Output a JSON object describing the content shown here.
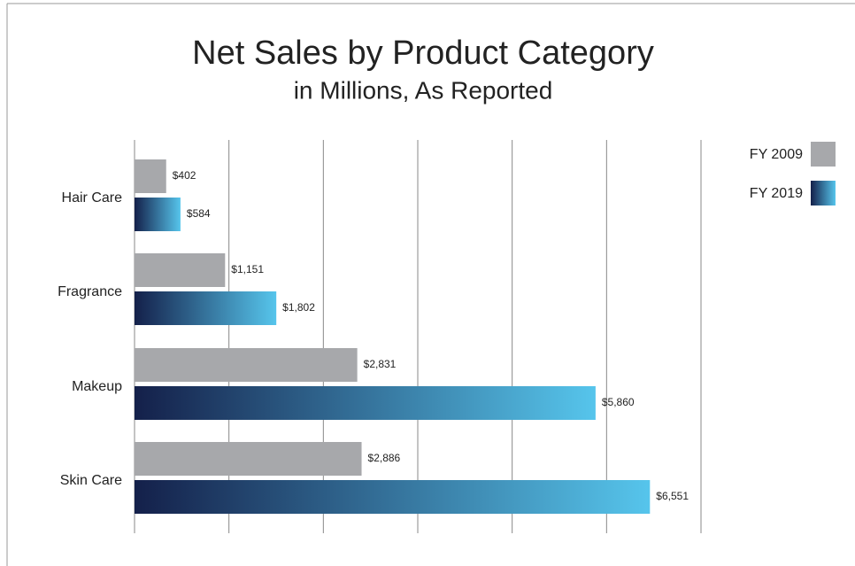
{
  "chart_data": {
    "type": "hbar",
    "title": "Net Sales by Product Category",
    "subtitle": "in Millions, As Reported",
    "categories": [
      "Hair Care",
      "Fragrance",
      "Makeup",
      "Skin Care"
    ],
    "series": [
      {
        "name": "FY 2009",
        "color": "#a7a8ab",
        "values": [
          402,
          1151,
          2831,
          2886
        ],
        "value_labels": [
          "$402",
          "$1,151",
          "$2,831",
          "$2,886"
        ]
      },
      {
        "name": "FY 2019",
        "color": "#56c5ec",
        "gradient_start": "#14204a",
        "values": [
          584,
          1802,
          5860,
          6551
        ],
        "value_labels": [
          "$584",
          "$1,802",
          "$5,860",
          "$6,551"
        ]
      }
    ],
    "xlim": [
      0,
      7200
    ],
    "xticks": [
      0,
      1200,
      2400,
      3600,
      4800,
      6000,
      7200
    ],
    "grid": true,
    "legend": "top-right"
  }
}
